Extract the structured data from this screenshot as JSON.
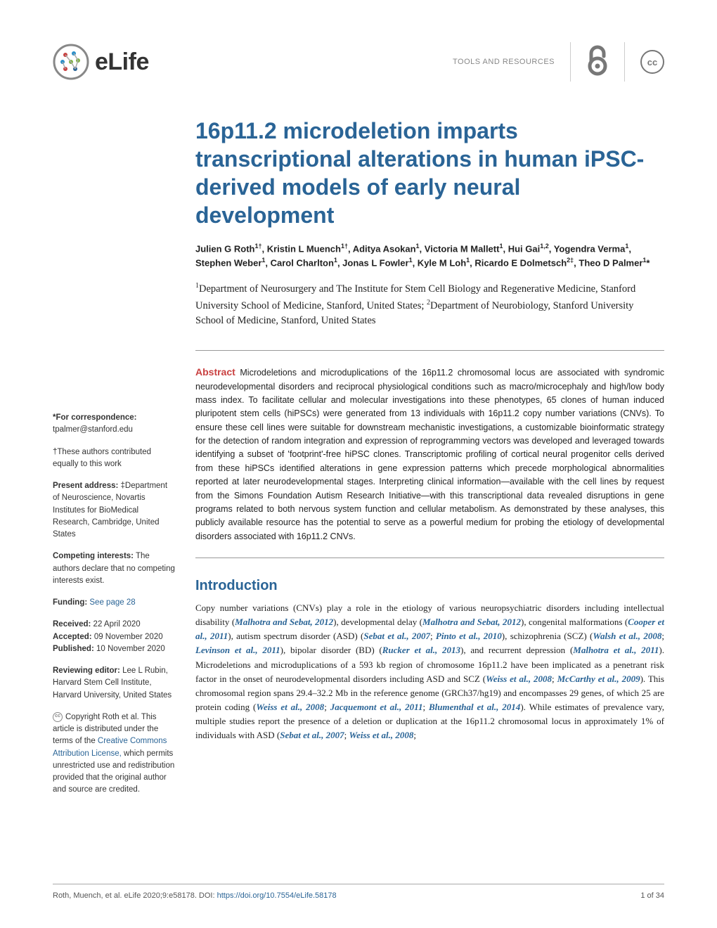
{
  "header": {
    "journal": "eLife",
    "category": "TOOLS AND RESOURCES",
    "cc_label": "cc"
  },
  "title": "16p11.2 microdeletion imparts transcriptional alterations in human iPSC-derived models of early neural development",
  "authors_html": "Julien G Roth<sup>1†</sup>, Kristin L Muench<sup>1†</sup>, Aditya Asokan<sup>1</sup>, Victoria M Mallett<sup>1</sup>, Hui Gai<sup>1,2</sup>, Yogendra Verma<sup>1</sup>, Stephen Weber<sup>1</sup>, Carol Charlton<sup>1</sup>, Jonas L Fowler<sup>1</sup>, Kyle M Loh<sup>1</sup>, Ricardo E Dolmetsch<sup>2‡</sup>, Theo D Palmer<sup>1</sup>*",
  "affiliations_html": "<sup>1</sup>Department of Neurosurgery and The Institute for Stem Cell Biology and Regenerative Medicine, Stanford University School of Medicine, Stanford, United States; <sup>2</sup>Department of Neurobiology, Stanford University School of Medicine, Stanford, United States",
  "abstract": {
    "label": "Abstract",
    "text": "Microdeletions and microduplications of the 16p11.2 chromosomal locus are associated with syndromic neurodevelopmental disorders and reciprocal physiological conditions such as macro/microcephaly and high/low body mass index. To facilitate cellular and molecular investigations into these phenotypes, 65 clones of human induced pluripotent stem cells (hiPSCs) were generated from 13 individuals with 16p11.2 copy number variations (CNVs). To ensure these cell lines were suitable for downstream mechanistic investigations, a customizable bioinformatic strategy for the detection of random integration and expression of reprogramming vectors was developed and leveraged towards identifying a subset of 'footprint'-free hiPSC clones. Transcriptomic profiling of cortical neural progenitor cells derived from these hiPSCs identified alterations in gene expression patterns which precede morphological abnormalities reported at later neurodevelopmental stages. Interpreting clinical information—available with the cell lines by request from the Simons Foundation Autism Research Initiative—with this transcriptional data revealed disruptions in gene programs related to both nervous system function and cellular metabolism. As demonstrated by these analyses, this publicly available resource has the potential to serve as a powerful medium for probing the etiology of developmental disorders associated with 16p11.2 CNVs."
  },
  "sidebar": {
    "correspondence_label": "*For correspondence:",
    "correspondence_email": "tpalmer@stanford.edu",
    "equal_contrib": "†These authors contributed equally to this work",
    "present_address_label": "Present address:",
    "present_address": "‡Department of Neuroscience, Novartis Institutes for BioMedical Research, Cambridge, United States",
    "competing_label": "Competing interests:",
    "competing": "The authors declare that no competing interests exist.",
    "funding_label": "Funding:",
    "funding_link": "See page 28",
    "received_label": "Received:",
    "received": "22 April 2020",
    "accepted_label": "Accepted:",
    "accepted": "09 November 2020",
    "published_label": "Published:",
    "published": "10 November 2020",
    "reviewing_label": "Reviewing editor:",
    "reviewing": "Lee L Rubin, Harvard Stem Cell Institute, Harvard University, United States",
    "copyright": "Copyright Roth et al. This article is distributed under the terms of the ",
    "cc_link": "Creative Commons Attribution License,",
    "copyright2": " which permits unrestricted use and redistribution provided that the original author and source are credited."
  },
  "introduction": {
    "heading": "Introduction",
    "body_html": "Copy number variations (CNVs) play a role in the etiology of various neuropsychiatric disorders including intellectual disability (<span class='cite'>Malhotra and Sebat, 2012</span>), developmental delay (<span class='cite'>Malhotra and Sebat, 2012</span>), congenital malformations (<span class='cite'>Cooper et al., 2011</span>), autism spectrum disorder (ASD) (<span class='cite'>Sebat et al., 2007</span>; <span class='cite'>Pinto et al., 2010</span>), schizophrenia (SCZ) (<span class='cite'>Walsh et al., 2008</span>; <span class='cite'>Levinson et al., 2011</span>), bipolar disorder (BD) (<span class='cite'>Rucker et al., 2013</span>), and recurrent depression (<span class='cite'>Malhotra et al., 2011</span>). Microdeletions and microduplications of a 593 kb region of chromosome 16p11.2 have been implicated as a penetrant risk factor in the onset of neurodevelopmental disorders including ASD and SCZ (<span class='cite'>Weiss et al., 2008</span>; <span class='cite'>McCarthy et al., 2009</span>). This chromosomal region spans 29.4–32.2 Mb in the reference genome (GRCh37/hg19) and encompasses 29 genes, of which 25 are protein coding (<span class='cite'>Weiss et al., 2008</span>; <span class='cite'>Jacquemont et al., 2011</span>; <span class='cite'>Blumenthal et al., 2014</span>). While estimates of prevalence vary, multiple studies report the presence of a deletion or duplication at the 16p11.2 chromosomal locus in approximately 1% of individuals with ASD (<span class='cite'>Sebat et al., 2007</span>; <span class='cite'>Weiss et al., 2008</span>;"
  },
  "footer": {
    "citation": "Roth, Muench, et al. eLife 2020;9:e58178. DOI: ",
    "doi": "https://doi.org/10.7554/eLife.58178",
    "page": "1 of 34"
  },
  "colors": {
    "accent": "#2a6496",
    "abstract_label": "#c94141",
    "oa_icon": "#777777"
  }
}
